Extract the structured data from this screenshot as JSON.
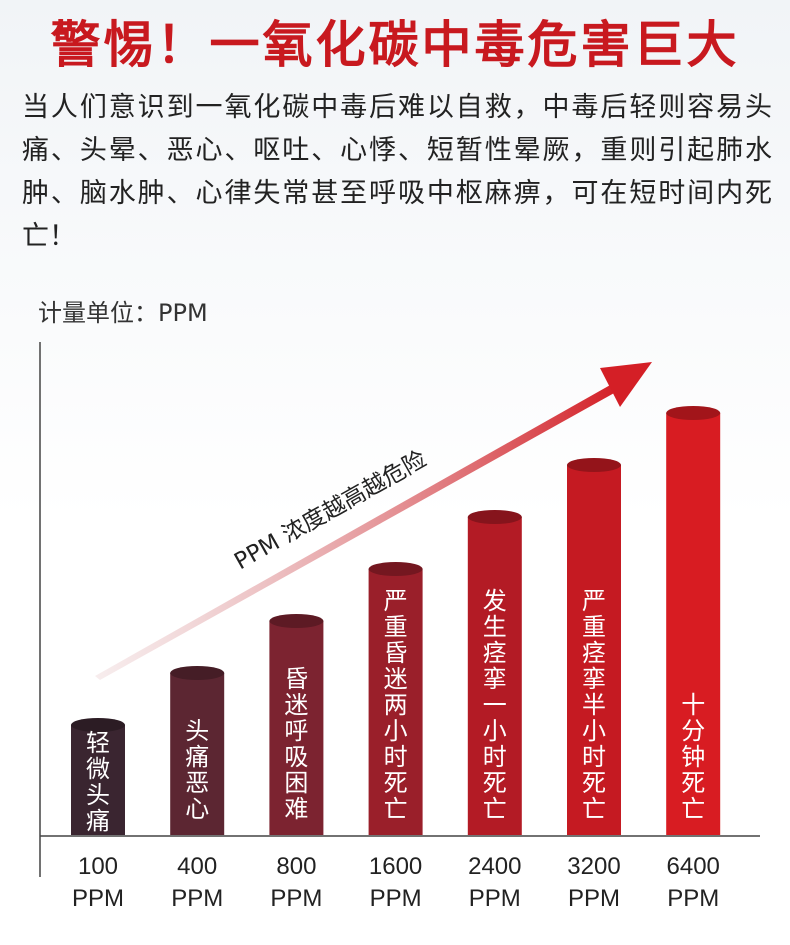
{
  "header": {
    "title": "警惕！一氧化碳中毒危害巨大",
    "description": "当人们意识到一氧化碳中毒后难以自救，中毒后轻则容易头痛、头晕、恶心、呕吐、心悸、短暂性晕厥，重则引起肺水肿、脑水肿、心律失常甚至呼吸中枢麻痹，可在短时间内死亡！"
  },
  "chart_data": {
    "type": "bar",
    "unit_label": "计量单位：PPM",
    "arrow_label": "PPM 浓度越高越危险",
    "categories": [
      "100 PPM",
      "400 PPM",
      "800 PPM",
      "1600 PPM",
      "2400 PPM",
      "3200 PPM",
      "6400 PPM"
    ],
    "tick_lines": [
      [
        "100",
        "PPM"
      ],
      [
        "400",
        "PPM"
      ],
      [
        "800",
        "PPM"
      ],
      [
        "1600",
        "PPM"
      ],
      [
        "2400",
        "PPM"
      ],
      [
        "3200",
        "PPM"
      ],
      [
        "6400",
        "PPM"
      ]
    ],
    "bar_labels": [
      "轻微头痛",
      "头痛恶心",
      "昏迷呼吸困难",
      "严重昏迷两小时死亡",
      "发生痉挛一小时死亡",
      "严重痉挛半小时死亡",
      "十分钟死亡"
    ],
    "values": [
      1,
      2,
      3,
      4,
      5,
      6,
      7
    ],
    "colors": [
      "#3a2530",
      "#5c2632",
      "#7c2330",
      "#9a1f2a",
      "#b31b25",
      "#c51a22",
      "#d81c22"
    ]
  }
}
